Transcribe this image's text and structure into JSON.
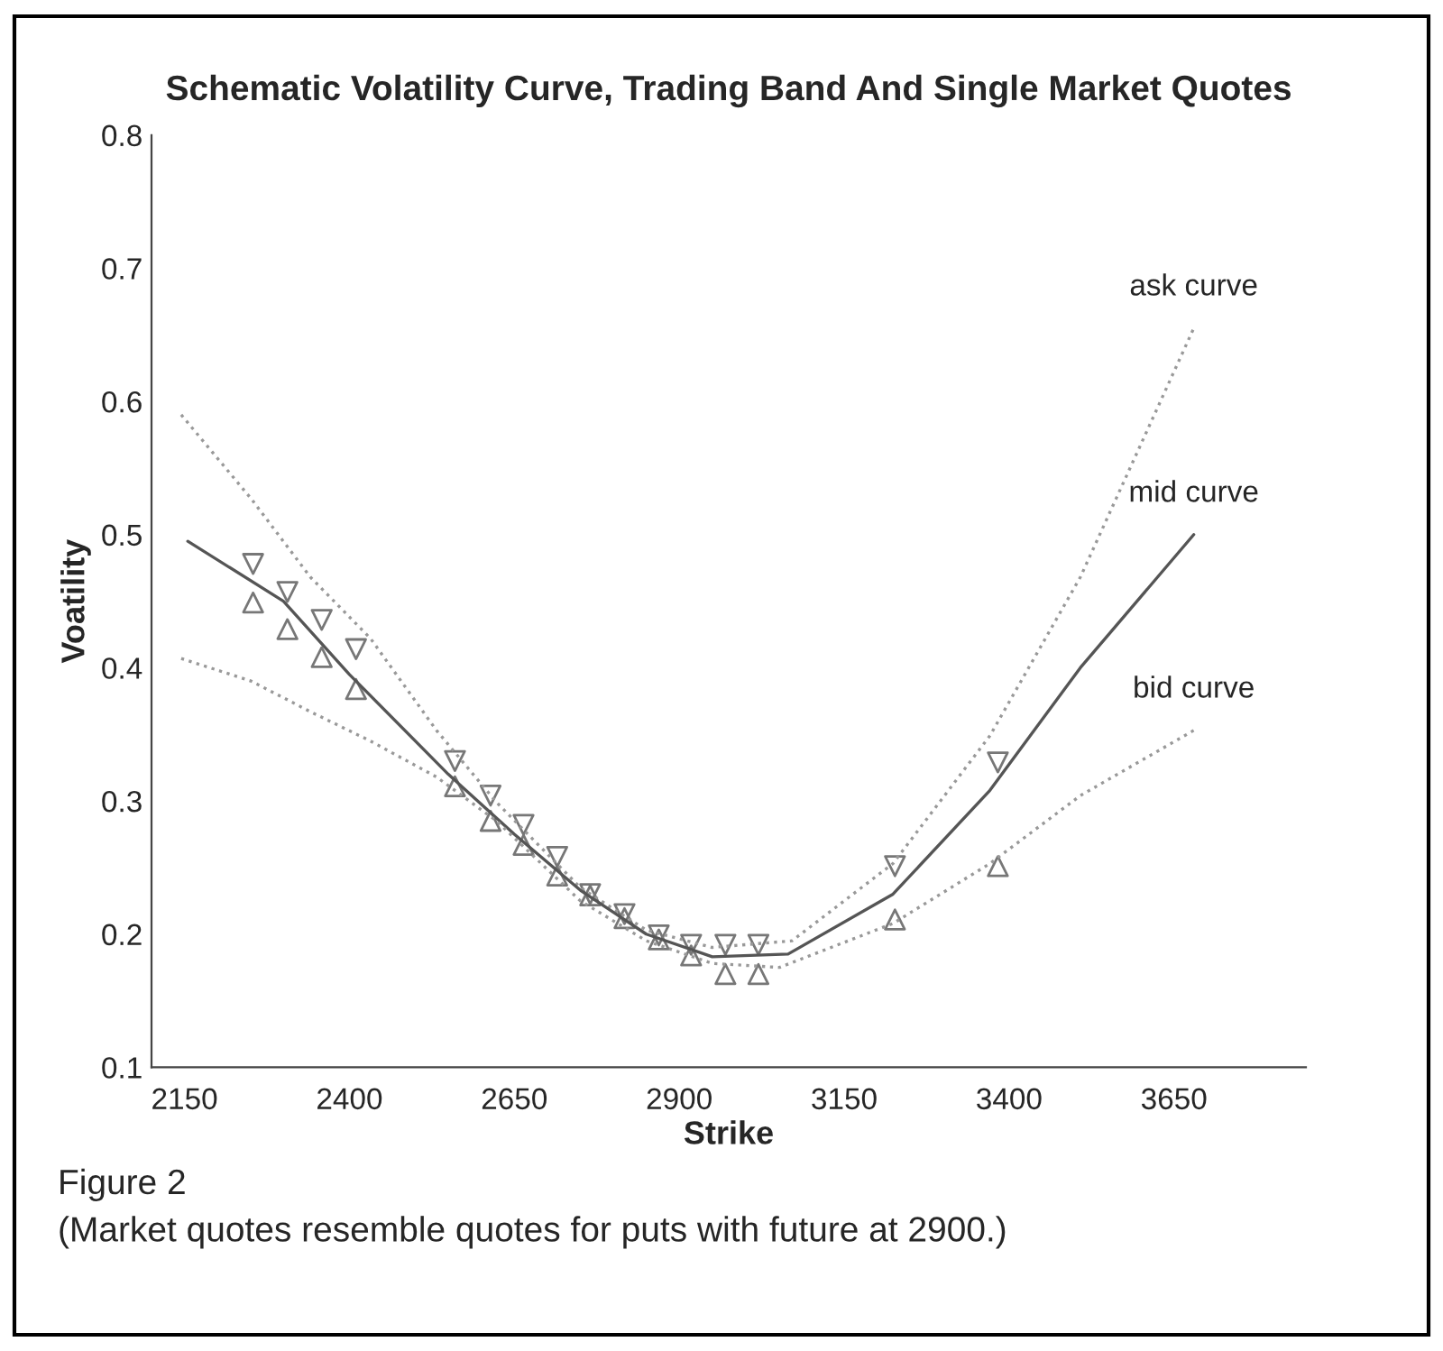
{
  "chart_data": {
    "type": "line",
    "title": "Schematic Volatility Curve, Trading Band And Single Market Quotes",
    "xlabel": "Strike",
    "ylabel": "Voatility",
    "xlim": [
      2100,
      3850
    ],
    "xticks": [
      2150,
      2400,
      2650,
      2900,
      3150,
      3400,
      3650
    ],
    "ylim": [
      0.1,
      0.8
    ],
    "yticks": [
      0.1,
      0.2,
      0.3,
      0.4,
      0.5,
      0.6,
      0.7,
      0.8
    ],
    "grid": false,
    "legend": false,
    "series": [
      {
        "name": "ask curve",
        "line_style": "dotted",
        "marker": "none",
        "color": "#999999",
        "x": [
          2145,
          2251,
          2341,
          2432,
          2532,
          2623,
          2750,
          2850,
          2950,
          3071,
          3224,
          3371,
          3508,
          3680
        ],
        "values": [
          0.59,
          0.527,
          0.468,
          0.422,
          0.353,
          0.299,
          0.235,
          0.203,
          0.19,
          0.195,
          0.253,
          0.349,
          0.468,
          0.655
        ]
      },
      {
        "name": "mid curve",
        "line_style": "solid",
        "marker": "none",
        "color": "#555555",
        "x": [
          2155,
          2300,
          2400,
          2550,
          2650,
          2750,
          2850,
          2950,
          3065,
          3224,
          3371,
          3508,
          3680
        ],
        "values": [
          0.495,
          0.45,
          0.395,
          0.32,
          0.275,
          0.233,
          0.2,
          0.183,
          0.185,
          0.23,
          0.308,
          0.4,
          0.5
        ]
      },
      {
        "name": "bid curve",
        "line_style": "dotted",
        "marker": "none",
        "color": "#999999",
        "x": [
          2145,
          2251,
          2341,
          2432,
          2532,
          2623,
          2750,
          2850,
          2950,
          3052,
          3224,
          3371,
          3508,
          3680
        ],
        "values": [
          0.407,
          0.39,
          0.367,
          0.345,
          0.318,
          0.285,
          0.225,
          0.195,
          0.178,
          0.175,
          0.208,
          0.253,
          0.304,
          0.353
        ]
      },
      {
        "type": "scatter",
        "marker": "triangle_down",
        "color": "#777777",
        "x": [
          2254,
          2306,
          2358,
          2410,
          2560,
          2614,
          2664,
          2715,
          2765,
          2817,
          2869,
          2918,
          2970,
          3020,
          3227,
          3383
        ],
        "values": [
          0.478,
          0.457,
          0.436,
          0.414,
          0.33,
          0.304,
          0.282,
          0.258,
          0.23,
          0.215,
          0.199,
          0.192,
          0.192,
          0.192,
          0.251,
          0.329
        ]
      },
      {
        "type": "scatter",
        "marker": "triangle",
        "color": "#777777",
        "x": [
          2254,
          2306,
          2358,
          2410,
          2560,
          2614,
          2664,
          2715,
          2765,
          2817,
          2869,
          2918,
          2970,
          3020,
          3227,
          3383
        ],
        "values": [
          0.449,
          0.429,
          0.408,
          0.384,
          0.311,
          0.285,
          0.267,
          0.244,
          0.229,
          0.212,
          0.196,
          0.184,
          0.17,
          0.17,
          0.211,
          0.251
        ]
      }
    ],
    "annotations": [
      "Figure 2",
      "(Market quotes resemble quotes for puts with future at 2900.)"
    ]
  }
}
